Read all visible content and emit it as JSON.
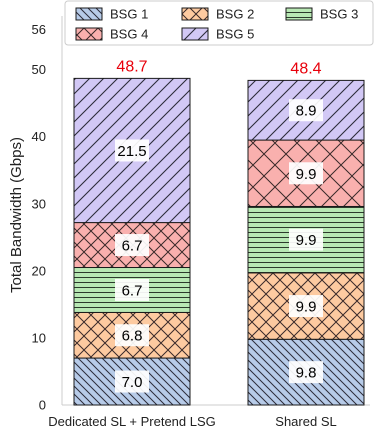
{
  "chart_data": {
    "type": "bar",
    "stacked": true,
    "categories": [
      "Dedicated SL + Pretend LSG",
      "Shared SL"
    ],
    "series": [
      {
        "name": "BSG 1",
        "values": [
          7.0,
          9.8
        ],
        "color": "#b7cbe8",
        "hatch": "diagonal-backslash"
      },
      {
        "name": "BSG 2",
        "values": [
          6.8,
          9.9
        ],
        "color": "#fdcaa0",
        "hatch": "crosshatch"
      },
      {
        "name": "BSG 3",
        "values": [
          6.7,
          9.9
        ],
        "color": "#b8e8b4",
        "hatch": "horizontal"
      },
      {
        "name": "BSG 4",
        "values": [
          6.7,
          9.9
        ],
        "color": "#f9b0ae",
        "hatch": "crosshatch"
      },
      {
        "name": "BSG 5",
        "values": [
          21.5,
          8.9
        ],
        "color": "#d2c8f5",
        "hatch": "diagonal-slash"
      }
    ],
    "totals": [
      48.7,
      48.4
    ],
    "total_label_color": "#e8000b",
    "ylabel": "Total Bandwidth (Gbps)",
    "xlabel": "",
    "ylim": [
      0,
      58
    ],
    "yticks": [
      0,
      10,
      20,
      30,
      40,
      50,
      56
    ],
    "grid": false,
    "legend_position": "top"
  }
}
